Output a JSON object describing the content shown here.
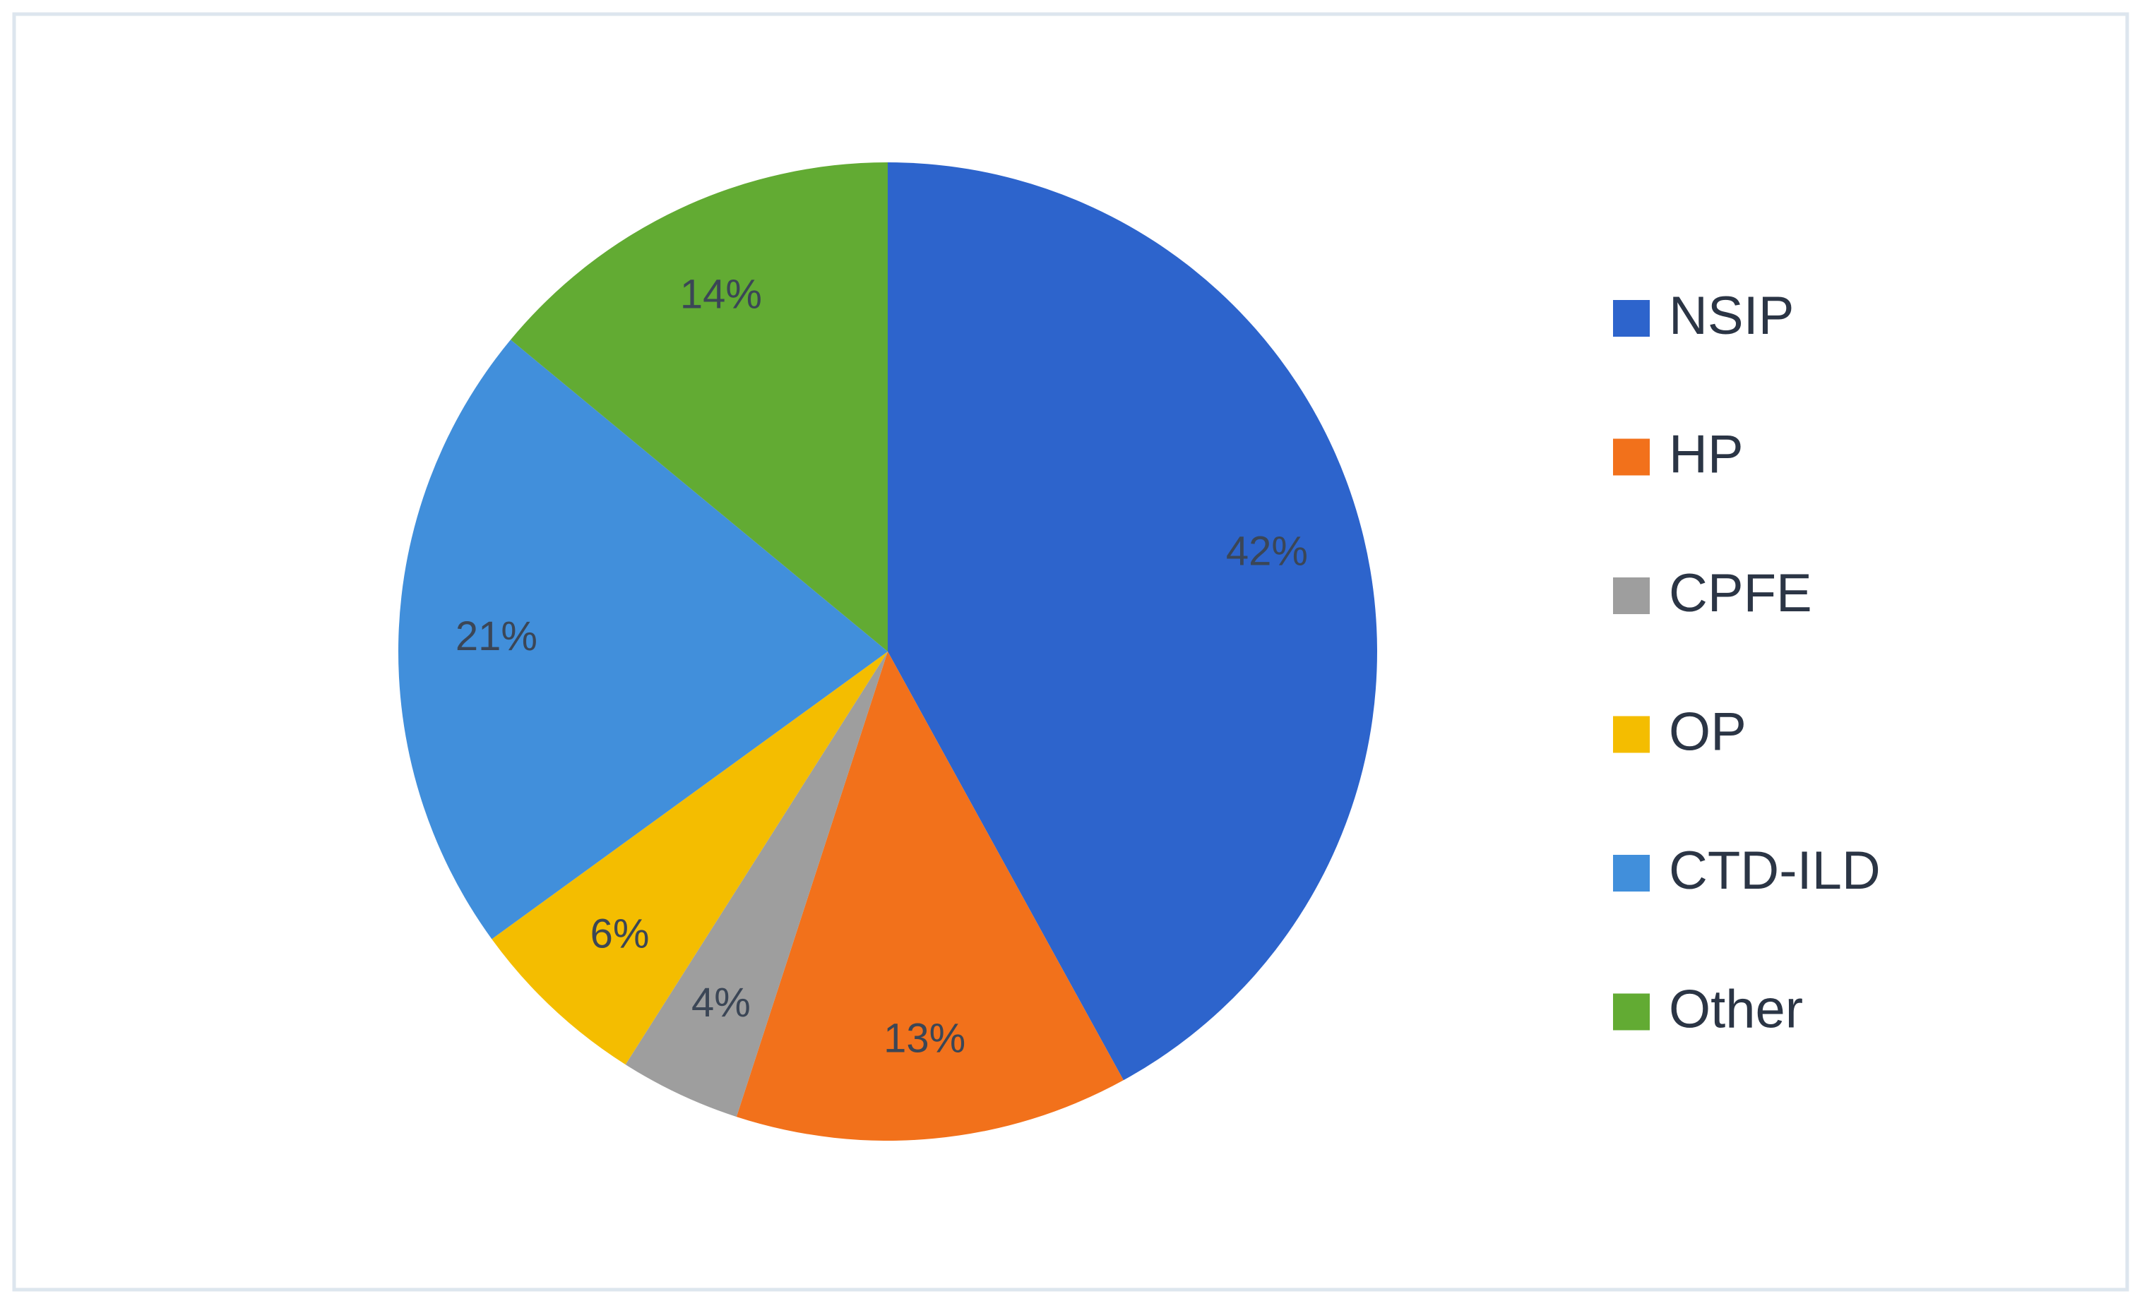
{
  "chart_data": {
    "type": "pie",
    "categories": [
      "NSIP",
      "HP",
      "CPFE",
      "OP",
      "CTD-ILD",
      "Other"
    ],
    "values": [
      42,
      13,
      4,
      6,
      21,
      14
    ],
    "value_labels": [
      "42%",
      "13%",
      "4%",
      "6%",
      "21%",
      "14%"
    ],
    "colors": [
      "#2d64cc",
      "#f2711b",
      "#9e9e9e",
      "#f4bd00",
      "#418fdb",
      "#62ab33"
    ],
    "legend": "right"
  }
}
